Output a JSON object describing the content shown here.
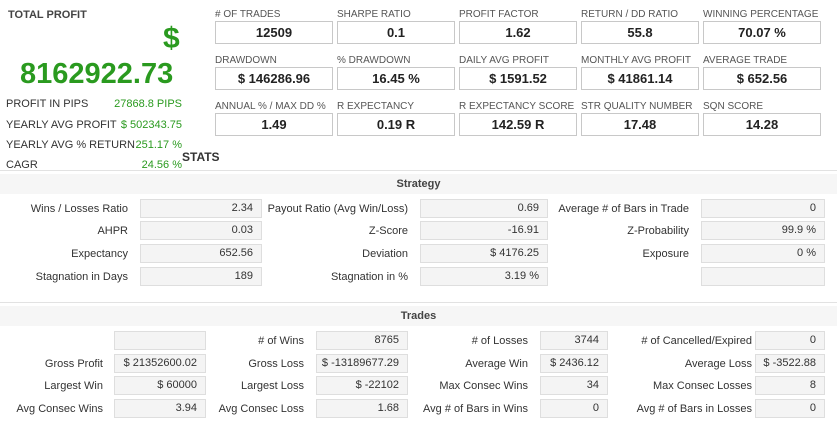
{
  "total_profit": {
    "label": "TOTAL PROFIT",
    "currency_symbol": "$",
    "value": "8162922.73",
    "rows": [
      {
        "key": "PROFIT IN PIPS",
        "value": "27868.8 PIPS"
      },
      {
        "key": "YEARLY AVG PROFIT",
        "value": "$ 502343.75"
      },
      {
        "key": "YEARLY AVG % RETURN",
        "value": "251.17 %"
      },
      {
        "key": "CAGR",
        "value": "24.56 %"
      }
    ]
  },
  "metrics": [
    {
      "label": "# OF TRADES",
      "value": "12509"
    },
    {
      "label": "SHARPE RATIO",
      "value": "0.1"
    },
    {
      "label": "PROFIT FACTOR",
      "value": "1.62"
    },
    {
      "label": "RETURN / DD RATIO",
      "value": "55.8"
    },
    {
      "label": "WINNING PERCENTAGE",
      "value": "70.07 %"
    },
    {
      "label": "DRAWDOWN",
      "value": "$ 146286.96"
    },
    {
      "label": "% DRAWDOWN",
      "value": "16.45 %"
    },
    {
      "label": "DAILY AVG PROFIT",
      "value": "$ 1591.52"
    },
    {
      "label": "MONTHLY AVG PROFIT",
      "value": "$ 41861.14"
    },
    {
      "label": "AVERAGE TRADE",
      "value": "$ 652.56"
    },
    {
      "label": "ANNUAL % / MAX DD %",
      "value": "1.49"
    },
    {
      "label": "R EXPECTANCY",
      "value": "0.19 R"
    },
    {
      "label": "R EXPECTANCY SCORE",
      "value": "142.59 R"
    },
    {
      "label": "STR QUALITY NUMBER",
      "value": "17.48"
    },
    {
      "label": "SQN SCORE",
      "value": "14.28"
    }
  ],
  "stats_title": "STATS",
  "strategy": {
    "title": "Strategy",
    "rows": [
      [
        {
          "label": "Wins / Losses Ratio",
          "value": "2.34"
        },
        {
          "label": "Payout Ratio (Avg Win/Loss)",
          "value": "0.69"
        },
        {
          "label": "Average # of Bars in Trade",
          "value": "0"
        }
      ],
      [
        {
          "label": "AHPR",
          "value": "0.03"
        },
        {
          "label": "Z-Score",
          "value": "-16.91"
        },
        {
          "label": "Z-Probability",
          "value": "99.9 %"
        }
      ],
      [
        {
          "label": "Expectancy",
          "value": "652.56"
        },
        {
          "label": "Deviation",
          "value": "$ 4176.25"
        },
        {
          "label": "Exposure",
          "value": "0 %"
        }
      ],
      [
        {
          "label": "Stagnation in Days",
          "value": "189"
        },
        {
          "label": "Stagnation in %",
          "value": "3.19 %"
        },
        {
          "label": "",
          "value": ""
        }
      ]
    ]
  },
  "trades": {
    "title": "Trades",
    "rows": [
      [
        {
          "label": "",
          "value": ""
        },
        {
          "label": "# of Wins",
          "value": "8765"
        },
        {
          "label": "# of Losses",
          "value": "3744"
        },
        {
          "label": "# of Cancelled/Expired",
          "value": "0"
        }
      ],
      [
        {
          "label": "Gross Profit",
          "value": "$ 21352600.02"
        },
        {
          "label": "Gross Loss",
          "value": "$ -13189677.29"
        },
        {
          "label": "Average Win",
          "value": "$ 2436.12"
        },
        {
          "label": "Average Loss",
          "value": "$ -3522.88"
        }
      ],
      [
        {
          "label": "Largest Win",
          "value": "$ 60000"
        },
        {
          "label": "Largest Loss",
          "value": "$ -22102"
        },
        {
          "label": "Max Consec Wins",
          "value": "34"
        },
        {
          "label": "Max Consec Losses",
          "value": "8"
        }
      ],
      [
        {
          "label": "Avg Consec Wins",
          "value": "3.94"
        },
        {
          "label": "Avg Consec Loss",
          "value": "1.68"
        },
        {
          "label": "Avg # of Bars in Wins",
          "value": "0"
        },
        {
          "label": "Avg # of Bars in Losses",
          "value": "0"
        }
      ]
    ]
  }
}
